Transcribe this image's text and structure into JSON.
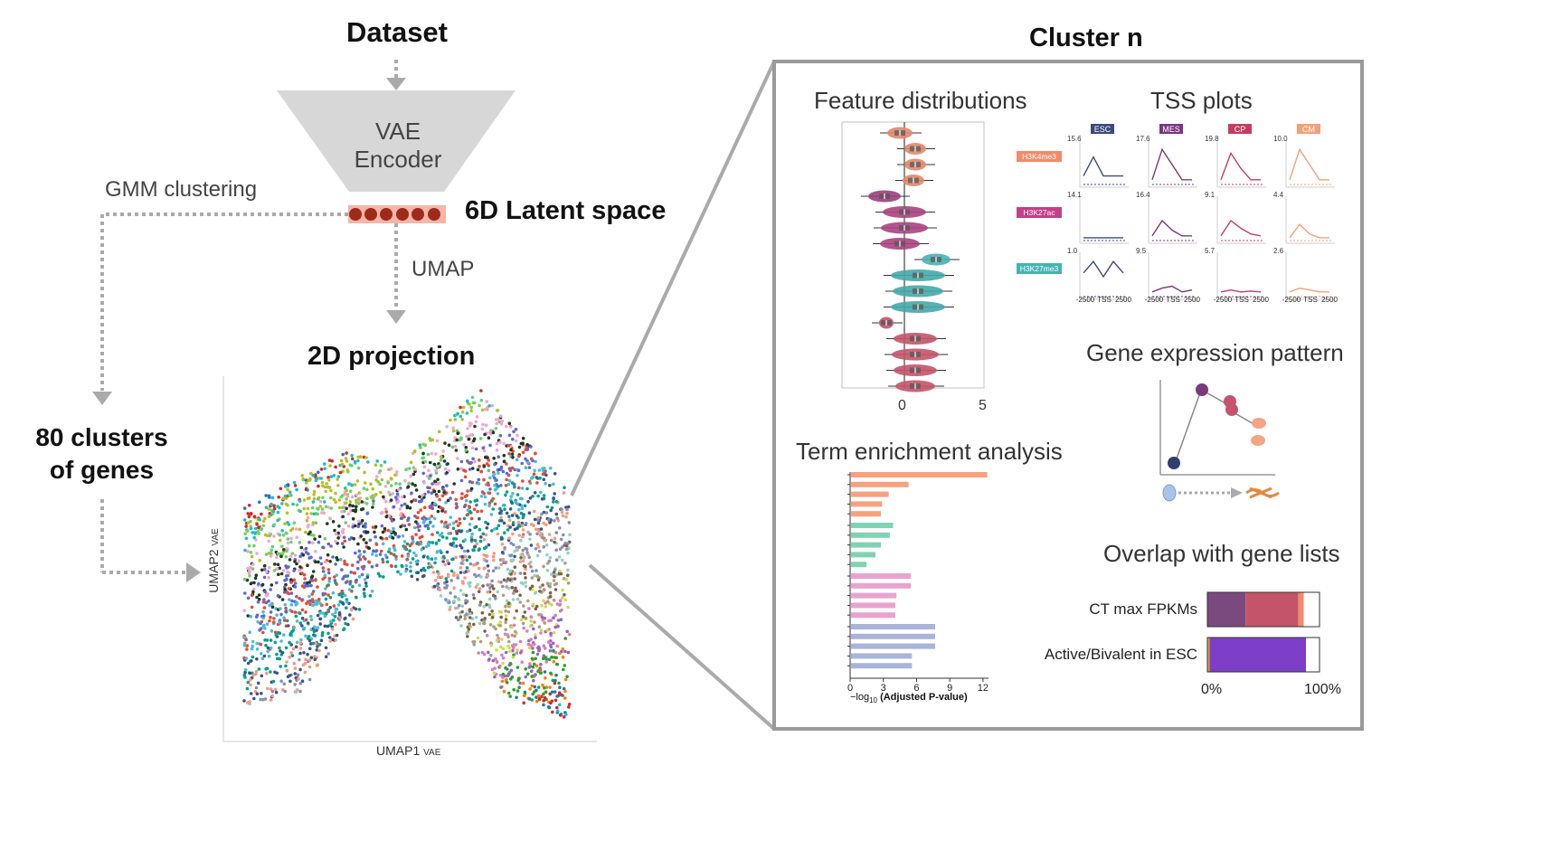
{
  "left": {
    "dataset": "Dataset",
    "encoder_line1": "VAE",
    "encoder_line2": "Encoder",
    "gmm": "GMM clustering",
    "latent": "6D Latent space",
    "umap": "UMAP",
    "projection": "2D projection",
    "clusters_line1": "80 clusters",
    "clusters_line2": "of genes",
    "umap1": "UMAP1",
    "umap1_sub": "VAE",
    "umap2": "UMAP2",
    "umap2_sub": "VAE"
  },
  "right": {
    "title": "Cluster n",
    "feature_title": "Feature distributions",
    "feature_ticks": [
      "0",
      "5"
    ],
    "tss_title": "TSS plots",
    "tss_columns": [
      "ESC",
      "MES",
      "CP",
      "CM"
    ],
    "tss_column_colors": [
      "#3b4a7a",
      "#7a3580",
      "#c43d5e",
      "#f2a07a"
    ],
    "tss_rows": [
      "H3K4me3",
      "H3K27ac",
      "H3K27me3"
    ],
    "tss_row_colors": [
      "#f08c6c",
      "#c2408a",
      "#46b3b3"
    ],
    "tss_values": [
      [
        "15.6",
        "17.6",
        "19.8",
        "10.0"
      ],
      [
        "14.1",
        "16.4",
        "9.1",
        "4.4"
      ],
      [
        "1.0",
        "9.5",
        "5.7",
        "2.6"
      ]
    ],
    "tss_axis": [
      "-2500",
      "TSS",
      "2500"
    ],
    "gene_expr_title": "Gene expression pattern",
    "term_title": "Term enrichment analysis",
    "term_xticks": [
      "0",
      "3",
      "6",
      "9",
      "12"
    ],
    "term_xlabel_prefix": "−log",
    "term_xlabel_sub": "10",
    "term_xlabel_rest": "(Adjusted P-value)",
    "overlap_title": "Overlap with gene lists",
    "overlap_row1": "CT max FPKMs",
    "overlap_row2": "Active/Bivalent in ESC",
    "overlap_min": "0%",
    "overlap_max": "100%"
  },
  "chart_data": [
    {
      "type": "bar",
      "orientation": "horizontal",
      "xlim": [
        0,
        12.5
      ],
      "xticks": [
        0,
        3,
        6,
        9,
        12
      ],
      "groups": [
        {
          "color": "#f6a27e",
          "values": [
            12.3,
            5.2,
            3.4,
            2.8,
            2.7
          ]
        },
        {
          "color": "#7fd3b3",
          "values": [
            3.8,
            3.5,
            2.7,
            2.2,
            1.4
          ]
        },
        {
          "color": "#e8a3cf",
          "values": [
            5.4,
            5.4,
            4.1,
            4.0,
            4.0
          ]
        },
        {
          "color": "#a8b4d8",
          "values": [
            7.6,
            7.6,
            7.6,
            5.5,
            5.5
          ]
        }
      ]
    },
    {
      "type": "bar",
      "orientation": "horizontal-stacked",
      "categories": [
        "CT max FPKMs",
        "Active/Bivalent in ESC"
      ],
      "series_colors": [
        "#7a4a7e",
        "#c4546a",
        "#ef8c6e",
        "#f3b285",
        "#ffffff",
        "#7d3ec8",
        "#e0a030"
      ],
      "stacks": [
        [
          {
            "color": "#7a4a7e",
            "value": 0.34
          },
          {
            "color": "#c4546a",
            "value": 0.47
          },
          {
            "color": "#ef8c6e",
            "value": 0.05
          },
          {
            "color": "#ffffff",
            "value": 0.14
          }
        ],
        [
          {
            "color": "#e0a030",
            "value": 0.02
          },
          {
            "color": "#7d3ec8",
            "value": 0.86
          },
          {
            "color": "#ffffff",
            "value": 0.12
          }
        ]
      ]
    }
  ]
}
